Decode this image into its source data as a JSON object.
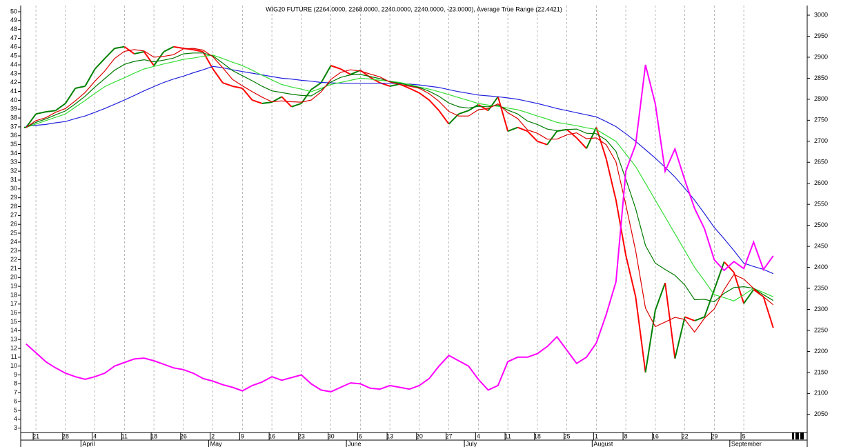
{
  "chart_data": {
    "type": "line",
    "title": "WIG20 FUTURE (2264.0000, 2268.0000, 2240.0000, 2240.0000, -23.0000), Average True Range (22.4421)",
    "categories": [
      null,
      "21",
      null,
      null,
      "28",
      null,
      null,
      "4",
      null,
      null,
      "11",
      null,
      null,
      "18",
      null,
      null,
      "26",
      null,
      null,
      "2",
      null,
      null,
      "9",
      null,
      null,
      "16",
      null,
      null,
      "23",
      null,
      null,
      "30",
      null,
      null,
      "6",
      null,
      null,
      "13",
      null,
      null,
      "20",
      null,
      null,
      "27",
      null,
      null,
      "4",
      null,
      null,
      "11",
      null,
      null,
      "18",
      null,
      null,
      "25",
      null,
      null,
      "1",
      null,
      null,
      "8",
      null,
      null,
      "16",
      null,
      null,
      "22",
      null,
      null,
      "29",
      null,
      null,
      "5",
      null,
      null,
      null
    ],
    "months": [
      null,
      null,
      null,
      null,
      null,
      null,
      "April",
      null,
      null,
      null,
      null,
      null,
      null,
      null,
      null,
      null,
      null,
      null,
      null,
      "May",
      null,
      null,
      null,
      null,
      null,
      null,
      null,
      null,
      null,
      null,
      null,
      null,
      null,
      "June",
      null,
      null,
      null,
      null,
      null,
      null,
      null,
      null,
      null,
      null,
      null,
      "July",
      null,
      null,
      null,
      null,
      null,
      null,
      null,
      null,
      null,
      null,
      null,
      null,
      "August",
      null,
      null,
      null,
      null,
      null,
      null,
      null,
      null,
      null,
      null,
      null,
      null,
      null,
      "September",
      null,
      null,
      null,
      null
    ],
    "ylim": [
      2.5,
      50.7
    ],
    "yticks": [
      3,
      4,
      5,
      6,
      7,
      8,
      9,
      10,
      11,
      12,
      13,
      14,
      15,
      16,
      17,
      18,
      19,
      20,
      21,
      22,
      23,
      24,
      25,
      26,
      27,
      28,
      29,
      30,
      31,
      32,
      33,
      34,
      35,
      36,
      37,
      38,
      39,
      40,
      41,
      42,
      43,
      44,
      45,
      46,
      47,
      48,
      49,
      50
    ],
    "y2lim": [
      2007,
      3023
    ],
    "y2ticks": [
      2050,
      2100,
      2150,
      2200,
      2250,
      2300,
      2350,
      2400,
      2450,
      2500,
      2550,
      2600,
      2650,
      2700,
      2750,
      2800,
      2850,
      2900,
      2950,
      3000
    ],
    "grid": true,
    "series": [
      {
        "style": "candle",
        "axis": "y2",
        "color_up": "#008000",
        "color_down": "#ff0000",
        "values": [
          2733,
          2765,
          2770,
          2773,
          2790,
          2826,
          2831,
          2872,
          2897,
          2921,
          2925,
          2908,
          2913,
          2880,
          2913,
          2925,
          2921,
          2918,
          2913,
          2872,
          2839,
          2831,
          2826,
          2798,
          2790,
          2793,
          2806,
          2782,
          2790,
          2823,
          2839,
          2880,
          2872,
          2859,
          2869,
          2852,
          2839,
          2831,
          2836,
          2826,
          2815,
          2798,
          2773,
          2741,
          2765,
          2773,
          2787,
          2773,
          2806,
          2724,
          2733,
          2724,
          2700,
          2692,
          2724,
          2728,
          2708,
          2683,
          2733,
          2659,
          2560,
          2429,
          2330,
          2150,
          2298,
          2363,
          2183,
          2282,
          2273,
          2282,
          2347,
          2413,
          2388,
          2314,
          2347,
          2330,
          2256
        ]
      },
      {
        "axis": "y2",
        "color": "#2222dd",
        "values": [
          2736,
          2738,
          2740,
          2744,
          2747,
          2754,
          2760,
          2769,
          2778,
          2788,
          2798,
          2809,
          2820,
          2830,
          2840,
          2848,
          2855,
          2863,
          2870,
          2878,
          2875,
          2870,
          2866,
          2862,
          2858,
          2854,
          2850,
          2848,
          2845,
          2843,
          2840,
          2839,
          2838,
          2838,
          2838,
          2838,
          2838,
          2838,
          2837,
          2836,
          2834,
          2831,
          2828,
          2823,
          2818,
          2814,
          2810,
          2808,
          2806,
          2803,
          2800,
          2795,
          2790,
          2784,
          2778,
          2773,
          2768,
          2763,
          2758,
          2747,
          2735,
          2718,
          2700,
          2680,
          2660,
          2638,
          2615,
          2588,
          2560,
          2528,
          2495,
          2468,
          2440,
          2410,
          2402,
          2395,
          2385
        ]
      },
      {
        "axis": "y2",
        "color": "#33dd33",
        "values": [
          2733,
          2741,
          2749,
          2757,
          2765,
          2781,
          2797,
          2814,
          2830,
          2841,
          2851,
          2862,
          2872,
          2878,
          2884,
          2889,
          2895,
          2898,
          2902,
          2905,
          2897,
          2888,
          2880,
          2869,
          2857,
          2846,
          2835,
          2829,
          2824,
          2818,
          2826,
          2835,
          2840,
          2845,
          2850,
          2848,
          2845,
          2843,
          2840,
          2835,
          2829,
          2824,
          2818,
          2811,
          2804,
          2797,
          2790,
          2786,
          2783,
          2779,
          2775,
          2768,
          2760,
          2753,
          2745,
          2741,
          2737,
          2732,
          2728,
          2714,
          2700,
          2670,
          2640,
          2600,
          2560,
          2520,
          2480,
          2440,
          2400,
          2368,
          2335,
          2328,
          2320,
          2335,
          2350,
          2340,
          2330
        ]
      },
      {
        "axis": "y2",
        "color": "#007a00",
        "values": [
          2733,
          2745,
          2753,
          2763,
          2772,
          2789,
          2807,
          2829,
          2849,
          2869,
          2883,
          2890,
          2894,
          2889,
          2893,
          2898,
          2908,
          2910,
          2910,
          2903,
          2886,
          2868,
          2856,
          2844,
          2831,
          2820,
          2816,
          2812,
          2809,
          2808,
          2822,
          2841,
          2852,
          2858,
          2859,
          2854,
          2849,
          2842,
          2838,
          2833,
          2828,
          2819,
          2807,
          2791,
          2782,
          2779,
          2783,
          2782,
          2786,
          2774,
          2765,
          2748,
          2740,
          2729,
          2725,
          2728,
          2729,
          2719,
          2718,
          2703,
          2676,
          2610,
          2540,
          2452,
          2410,
          2395,
          2381,
          2358,
          2323,
          2324,
          2318,
          2338,
          2352,
          2354,
          2350,
          2335,
          2321
        ]
      },
      {
        "axis": "y2",
        "color": "#dd0000",
        "values": [
          2733,
          2749,
          2756,
          2769,
          2778,
          2796,
          2816,
          2843,
          2867,
          2897,
          2914,
          2918,
          2915,
          2900,
          2902,
          2906,
          2920,
          2921,
          2917,
          2901,
          2875,
          2847,
          2832,
          2818,
          2805,
          2794,
          2796,
          2794,
          2793,
          2798,
          2817,
          2847,
          2864,
          2870,
          2867,
          2860,
          2853,
          2841,
          2835,
          2831,
          2826,
          2813,
          2795,
          2771,
          2760,
          2760,
          2775,
          2778,
          2789,
          2768,
          2754,
          2727,
          2719,
          2705,
          2705,
          2715,
          2720,
          2706,
          2708,
          2692,
          2651,
          2549,
          2440,
          2303,
          2259,
          2270,
          2281,
          2276,
          2246,
          2279,
          2301,
          2347,
          2383,
          2372,
          2350,
          2330,
          2311
        ]
      },
      {
        "color": "#ff00ff",
        "values": [
          12.5,
          11.5,
          10.5,
          9.8,
          9.2,
          8.8,
          8.5,
          8.8,
          9.2,
          10.0,
          10.4,
          10.8,
          10.9,
          10.6,
          10.2,
          9.8,
          9.6,
          9.2,
          8.6,
          8.3,
          7.9,
          7.6,
          7.2,
          7.8,
          8.2,
          8.8,
          8.4,
          8.7,
          9.0,
          8.0,
          7.3,
          7.1,
          7.6,
          8.1,
          8.0,
          7.5,
          7.4,
          7.8,
          7.6,
          7.4,
          7.8,
          8.6,
          10.0,
          11.2,
          10.6,
          10.0,
          8.5,
          7.3,
          7.8,
          10.5,
          11.0,
          11.0,
          11.4,
          12.2,
          13.3,
          11.8,
          10.3,
          11.0,
          12.6,
          15.8,
          19.5,
          32.0,
          35.0,
          44.0,
          39.6,
          32.0,
          34.5,
          31.0,
          27.8,
          25.5,
          22.0,
          20.8,
          21.8,
          21.0,
          24.0,
          20.9,
          22.4421
        ]
      }
    ]
  }
}
